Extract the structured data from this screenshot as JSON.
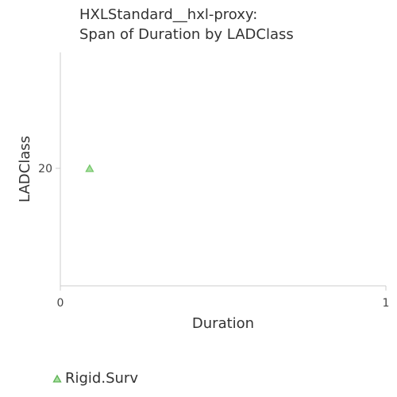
{
  "chart_data": {
    "type": "scatter",
    "title": [
      "HXLStandard__hxl-proxy:",
      "Span of Duration by LADClass"
    ],
    "xlabel": "Duration",
    "ylabel": "LADClass",
    "xlim": [
      0,
      1
    ],
    "x_ticks": [
      "0",
      "1"
    ],
    "y_ticks": [
      20
    ],
    "grid": false,
    "legend_placement": "bottom-left",
    "series": [
      {
        "name": "Rigid.Surv",
        "marker": "triangle",
        "color": "#76c76b",
        "points": [
          {
            "x": 0.09,
            "y": 20
          }
        ]
      }
    ]
  }
}
